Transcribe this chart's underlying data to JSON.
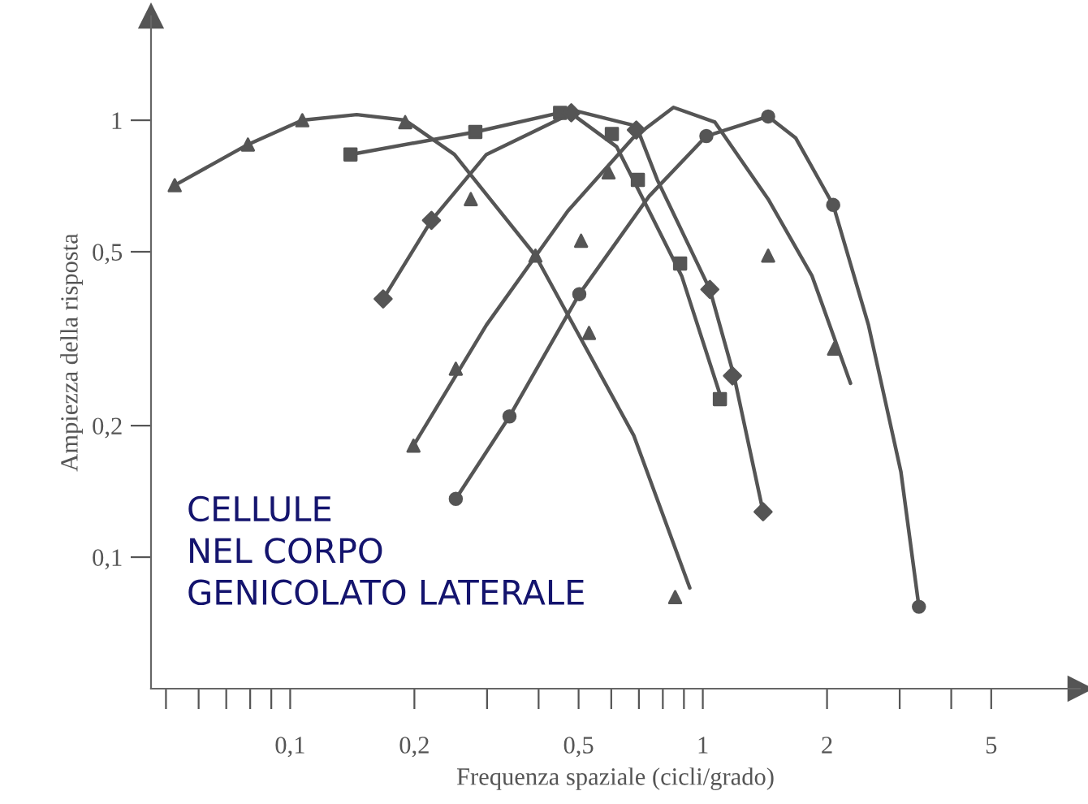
{
  "chart_data": {
    "type": "line",
    "xlabel": "Frequenza spaziale (cicli/grado)",
    "ylabel": "Ampiezza della risposta",
    "log": "xy",
    "grid": false,
    "legend": false,
    "xlim": [
      0.046,
      8.2
    ],
    "ylim": [
      0.05,
      1.73
    ],
    "xticks": [
      {
        "value": 0.05,
        "label": null
      },
      {
        "value": 0.06,
        "label": null
      },
      {
        "value": 0.07,
        "label": null
      },
      {
        "value": 0.08,
        "label": null
      },
      {
        "value": 0.09,
        "label": null
      },
      {
        "value": 0.1,
        "label": "0,1"
      },
      {
        "value": 0.2,
        "label": "0,2"
      },
      {
        "value": 0.3,
        "label": null
      },
      {
        "value": 0.4,
        "label": null
      },
      {
        "value": 0.5,
        "label": "0,5"
      },
      {
        "value": 0.6,
        "label": null
      },
      {
        "value": 0.7,
        "label": null
      },
      {
        "value": 0.8,
        "label": null
      },
      {
        "value": 0.9,
        "label": null
      },
      {
        "value": 1,
        "label": "1"
      },
      {
        "value": 2,
        "label": "2"
      },
      {
        "value": 3,
        "label": null
      },
      {
        "value": 4,
        "label": null
      },
      {
        "value": 5,
        "label": "5"
      }
    ],
    "yticks": [
      {
        "value": 0.1,
        "label": "0,1"
      },
      {
        "value": 0.2,
        "label": "0,2"
      },
      {
        "value": 0.5,
        "label": "0,5"
      },
      {
        "value": 1,
        "label": "1"
      }
    ],
    "annotations": [
      "CELLULE\nNEL CORPO\nGENICOLATO LATERALE"
    ],
    "series": [
      {
        "marker": "none",
        "color": "#555555",
        "x": [
          0.0525,
          0.079,
          0.107,
          0.145,
          0.19,
          0.25,
          0.393,
          0.68,
          0.93
        ],
        "values": [
          0.71,
          0.88,
          1.0,
          1.03,
          1.0,
          0.835,
          0.49,
          0.19,
          0.085
        ]
      },
      {
        "type": "scatter",
        "marker": "triangle",
        "color": "#555555",
        "x": [
          0.0525,
          0.079,
          0.107,
          0.19,
          0.274,
          0.393,
          0.53,
          0.857
        ],
        "values": [
          0.71,
          0.88,
          1.0,
          0.99,
          0.66,
          0.49,
          0.326,
          0.081
        ]
      },
      {
        "marker": "none",
        "color": "#555555",
        "x": [
          0.14,
          0.281,
          0.471,
          0.618,
          0.741,
          0.889,
          1.11
        ],
        "values": [
          0.835,
          0.94,
          1.05,
          0.87,
          0.62,
          0.44,
          0.23
        ]
      },
      {
        "type": "scatter",
        "marker": "square",
        "color": "#555555",
        "x": [
          0.14,
          0.281,
          0.451,
          0.602,
          0.696,
          0.881,
          1.1
        ],
        "values": [
          0.835,
          0.94,
          1.04,
          0.93,
          0.73,
          0.47,
          0.23
        ]
      },
      {
        "marker": "none",
        "color": "#555555",
        "x": [
          0.168,
          0.22,
          0.299,
          0.493,
          0.69,
          0.776,
          1.04,
          1.19,
          1.4
        ],
        "values": [
          0.39,
          0.59,
          0.835,
          1.05,
          0.97,
          0.73,
          0.41,
          0.26,
          0.127
        ]
      },
      {
        "type": "scatter",
        "marker": "diamond",
        "color": "#555555",
        "x": [
          0.168,
          0.22,
          0.48,
          0.69,
          1.04,
          1.18,
          1.4
        ],
        "values": [
          0.39,
          0.59,
          1.04,
          0.95,
          0.41,
          0.26,
          0.127
        ]
      },
      {
        "marker": "none",
        "color": "#555555",
        "x": [
          0.199,
          0.299,
          0.471,
          0.677,
          0.849,
          1.07,
          1.44,
          1.84,
          2.28
        ],
        "values": [
          0.18,
          0.34,
          0.62,
          0.91,
          1.07,
          0.99,
          0.66,
          0.44,
          0.25
        ]
      },
      {
        "type": "scatter",
        "marker": "triangle",
        "color": "#555555",
        "x": [
          0.199,
          0.252,
          0.507,
          0.591,
          1.44,
          2.08
        ],
        "values": [
          0.18,
          0.27,
          0.53,
          0.76,
          0.49,
          0.3
        ]
      },
      {
        "marker": "none",
        "color": "#555555",
        "x": [
          0.252,
          0.34,
          0.502,
          0.741,
          1.02,
          1.44,
          1.68,
          2.07,
          2.52,
          3.02,
          3.34
        ],
        "values": [
          0.136,
          0.21,
          0.4,
          0.67,
          0.92,
          1.02,
          0.91,
          0.64,
          0.34,
          0.157,
          0.077
        ]
      },
      {
        "type": "scatter",
        "marker": "circle",
        "color": "#555555",
        "x": [
          0.252,
          0.34,
          0.502,
          1.02,
          1.44,
          2.07,
          3.34
        ],
        "values": [
          0.136,
          0.21,
          0.4,
          0.92,
          1.02,
          0.64,
          0.077
        ]
      }
    ]
  }
}
